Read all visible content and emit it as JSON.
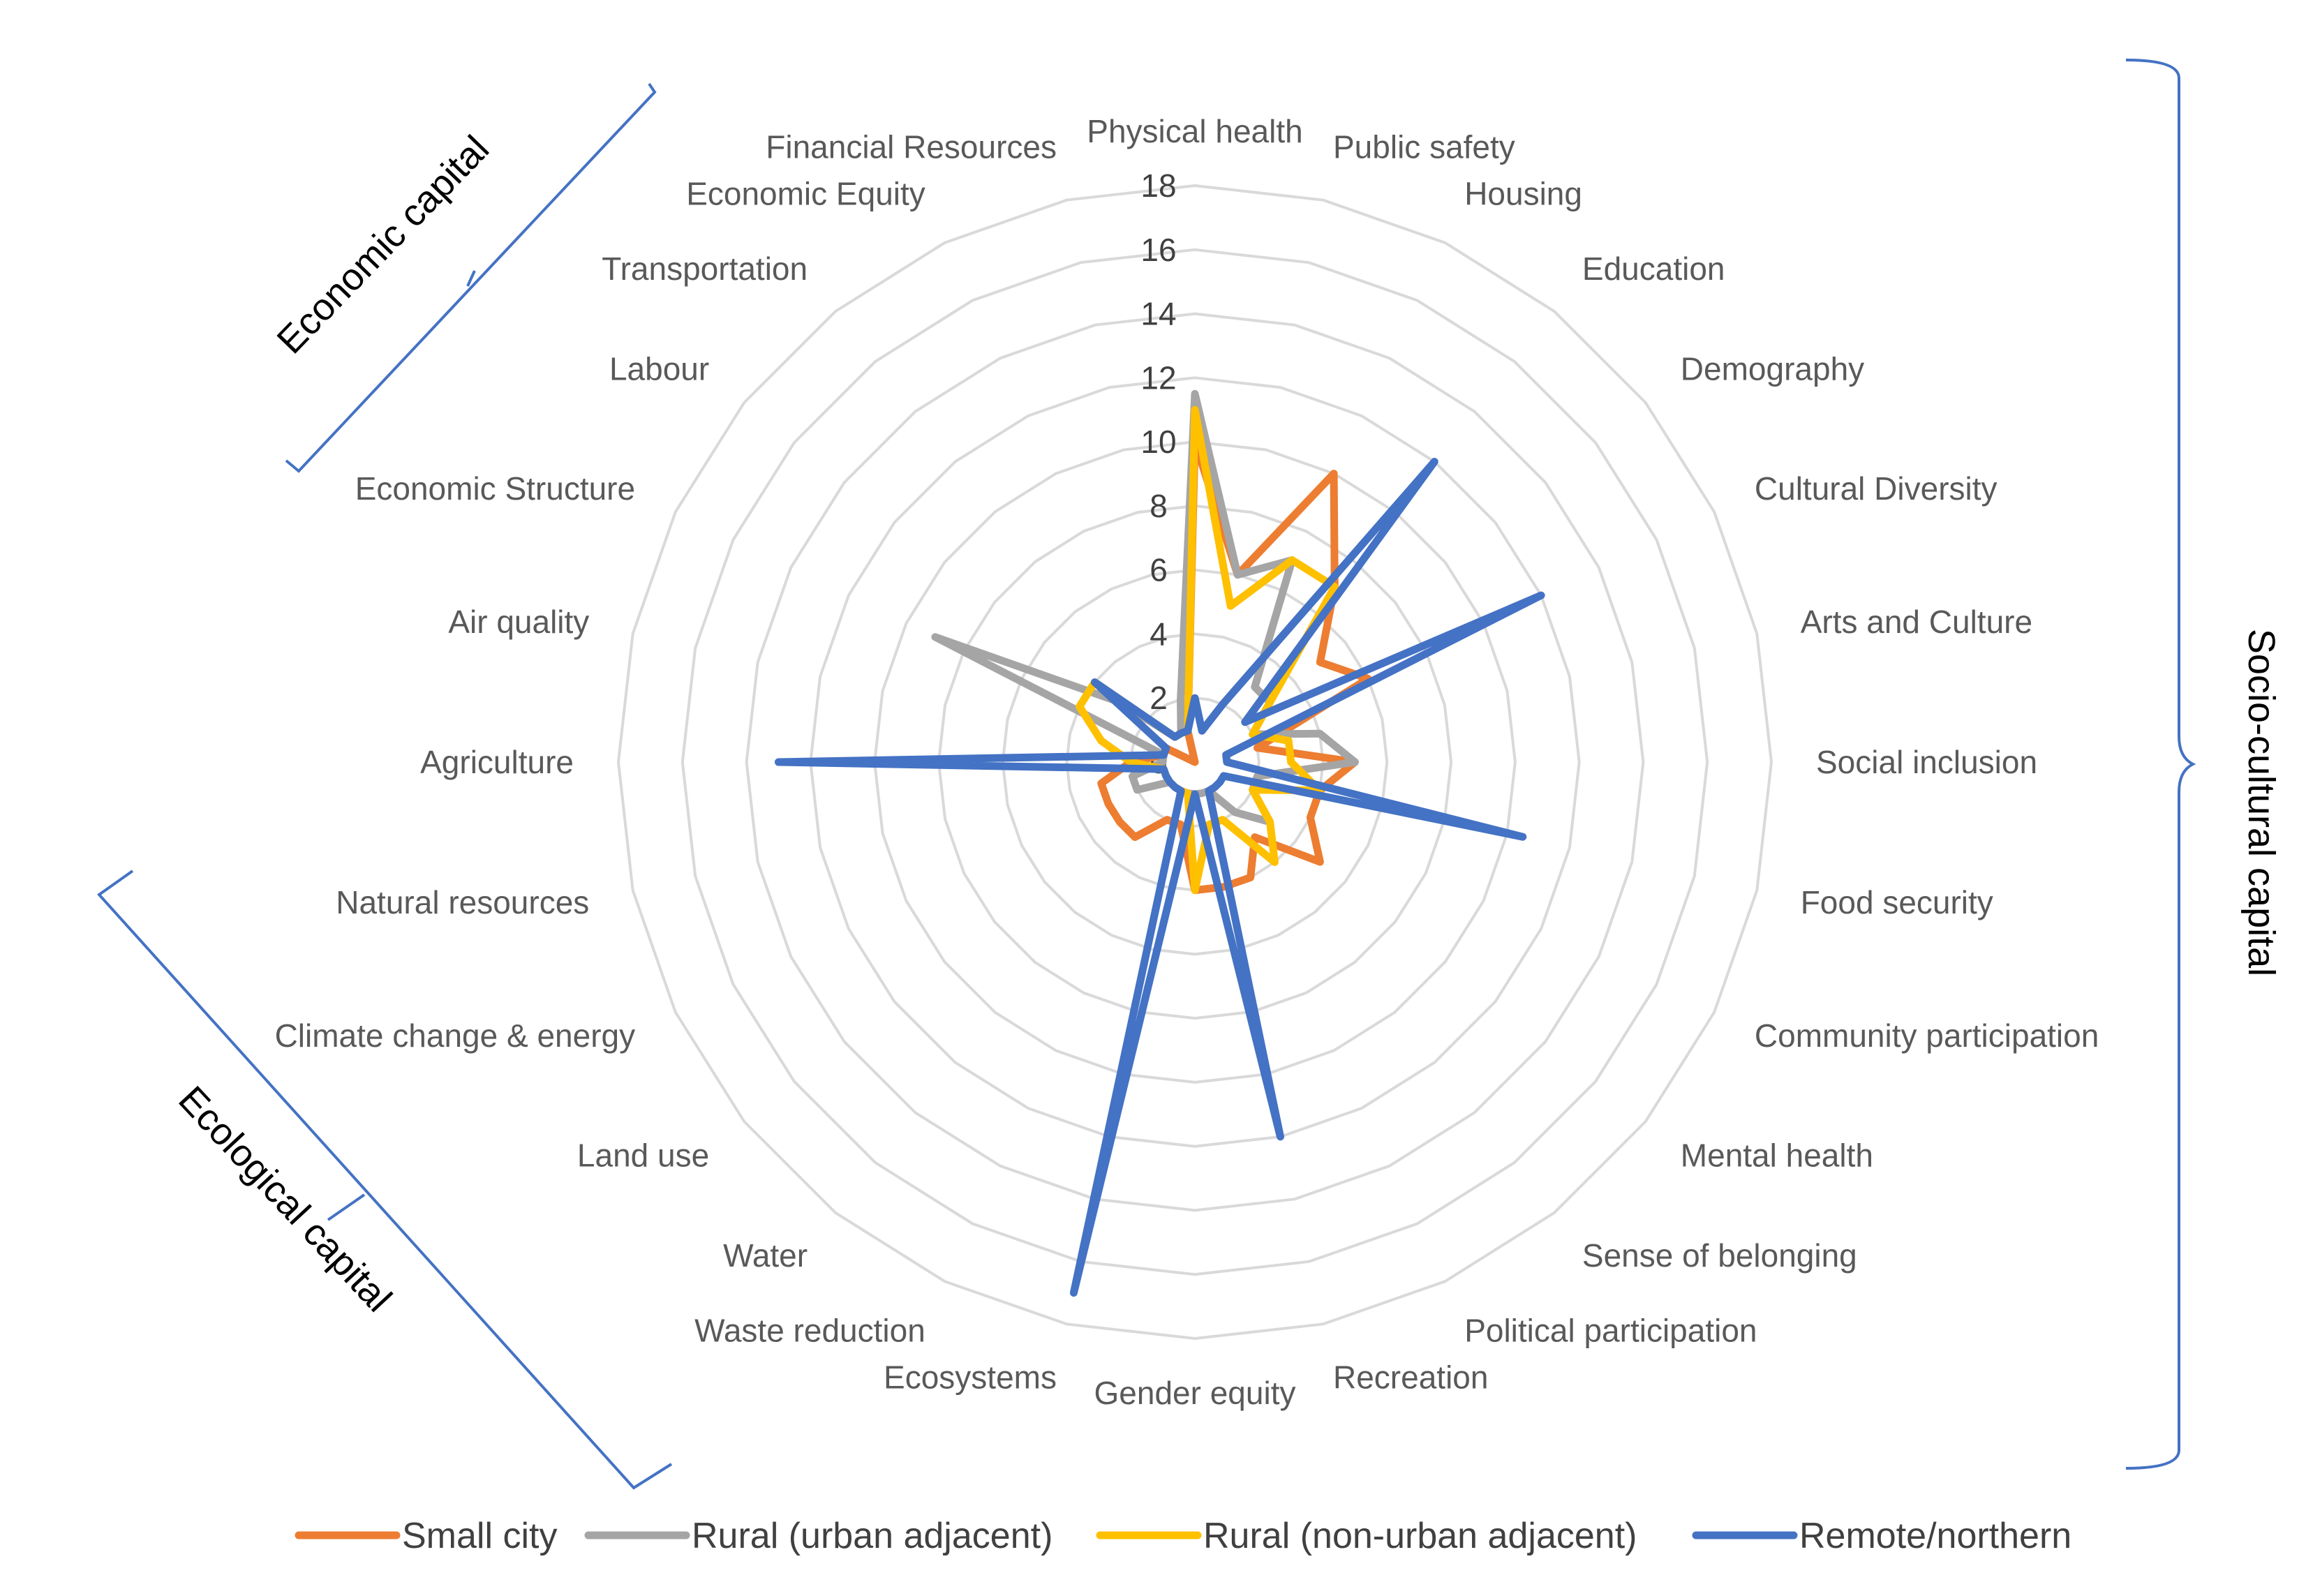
{
  "chart_data": {
    "type": "radar",
    "title": "",
    "categories": [
      "Physical health",
      "Public safety",
      "Housing",
      "Education",
      "Demography",
      "Cultural  Diversity",
      "Arts and Culture",
      "Social inclusion",
      "Food security",
      "Community  participation",
      "Mental health",
      "Sense of belonging",
      "Political  participation",
      "Recreation",
      "Gender equity",
      "Ecosystems",
      "Waste reduction",
      "Water",
      "Land use",
      "Climate  change & energy",
      "Natural  resources",
      "Agriculture",
      "Air quality",
      "Economic  Structure",
      "Labour",
      "Transportation",
      "Economic  Equity",
      "Financial Resources"
    ],
    "rlim": [
      0,
      18
    ],
    "ticks": [
      0,
      2,
      4,
      6,
      8,
      10,
      12,
      14,
      16,
      18
    ],
    "series": [
      {
        "name": "Small city",
        "color": "#ed7d31",
        "values": [
          10,
          6,
          10,
          7,
          5,
          6,
          2,
          5,
          4,
          4,
          5,
          3,
          4,
          4,
          4,
          2,
          2,
          3,
          3,
          3,
          3,
          2,
          1,
          1,
          0,
          0,
          0,
          1
        ]
      },
      {
        "name": "Rural (urban adjacent)",
        "color": "#a5a5a5",
        "values": [
          11.5,
          6,
          7,
          3,
          3,
          2,
          4,
          5,
          2,
          2,
          3,
          2,
          1,
          1,
          1,
          1,
          1,
          1,
          1,
          2,
          2,
          1,
          1,
          9,
          3,
          1,
          1,
          2
        ]
      },
      {
        "name": "Rural (non-urban adjacent)",
        "color": "#ffc000",
        "values": [
          11,
          5,
          7,
          7,
          3,
          2,
          3,
          3,
          4,
          2,
          3,
          4,
          2,
          2,
          4,
          1,
          1,
          1,
          1,
          1,
          1,
          2,
          3,
          4,
          4,
          1,
          1,
          1
        ]
      },
      {
        "name": "Remote/northern",
        "color": "#4472c4",
        "values": [
          2,
          1,
          2,
          12,
          2,
          12,
          1,
          1,
          10.5,
          1,
          1,
          1,
          1,
          12,
          1,
          17,
          1,
          1,
          1,
          1,
          1,
          13,
          1,
          1,
          4,
          1,
          1,
          1
        ]
      }
    ],
    "groups": [
      {
        "label": "Economic capital"
      },
      {
        "label": "Socio-cultural capital"
      },
      {
        "label": "Ecological capital"
      }
    ],
    "legend_position": "bottom"
  }
}
